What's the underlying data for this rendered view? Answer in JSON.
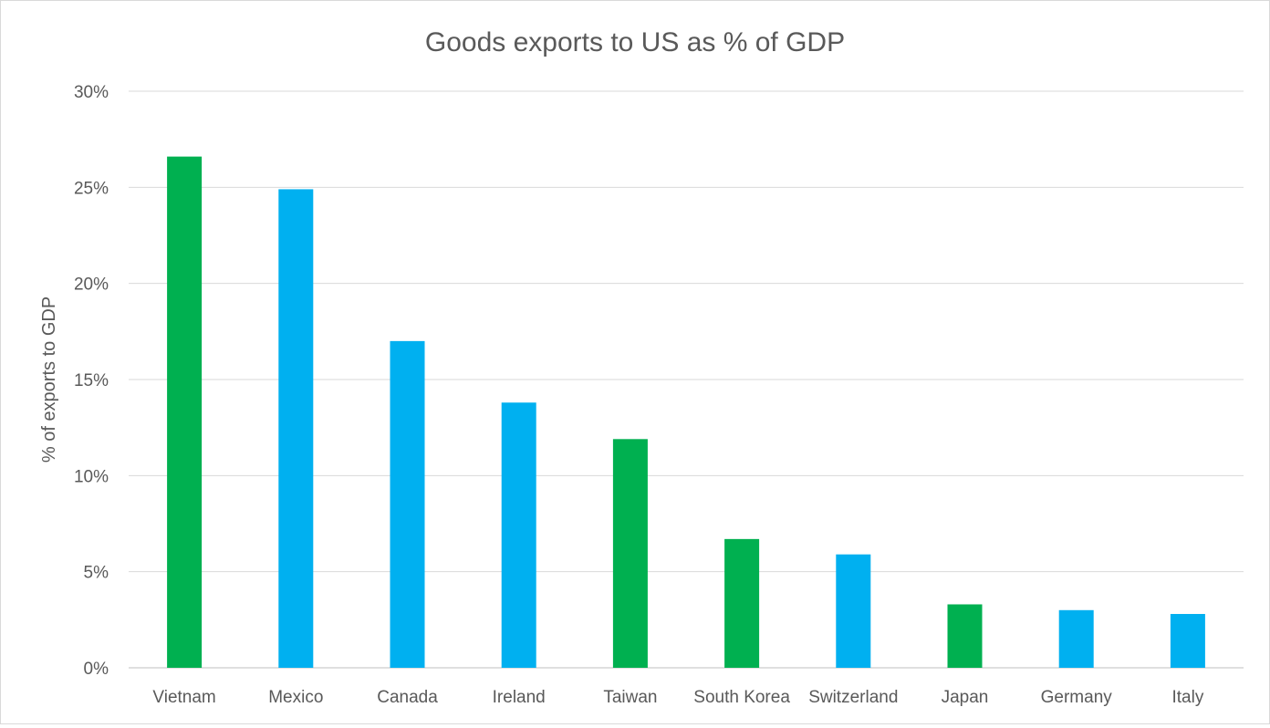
{
  "chart_data": {
    "type": "bar",
    "title": "Goods exports to US as % of GDP",
    "xlabel": "",
    "ylabel": "% of exports to GDP",
    "ylim": [
      0,
      30
    ],
    "yticks": [
      0,
      5,
      10,
      15,
      20,
      25,
      30
    ],
    "ytick_labels": [
      "0%",
      "5%",
      "10%",
      "15%",
      "20%",
      "25%",
      "30%"
    ],
    "grid": true,
    "legend": "none",
    "categories": [
      "Vietnam",
      "Mexico",
      "Canada",
      "Ireland",
      "Taiwan",
      "South Korea",
      "Switzerland",
      "Japan",
      "Germany",
      "Italy"
    ],
    "values": [
      26.6,
      24.9,
      17.0,
      13.8,
      11.9,
      6.7,
      5.9,
      3.3,
      3.0,
      2.8
    ],
    "bar_colors": [
      "#00B050",
      "#00B0F0",
      "#00B0F0",
      "#00B0F0",
      "#00B050",
      "#00B050",
      "#00B0F0",
      "#00B050",
      "#00B0F0",
      "#00B0F0"
    ]
  }
}
